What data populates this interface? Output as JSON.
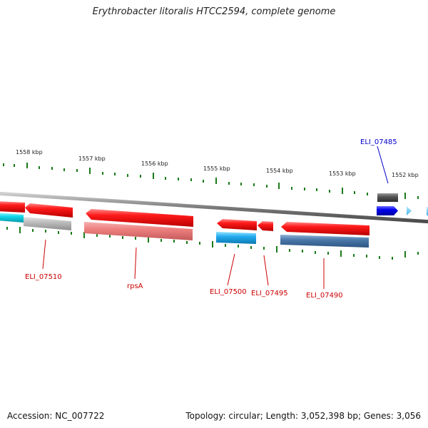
{
  "title": "Erythrobacter litoralis HTCC2594, complete genome",
  "footer": {
    "accession": "Accession: NC_007722",
    "topology": "Topology: circular; Length: 3,052,398 bp; Genes: 3,056"
  },
  "scale_labels": [
    "1558 kbp",
    "1557 kbp",
    "1556 kbp",
    "1555 kbp",
    "1554 kbp",
    "1553 kbp",
    "1552 kbp"
  ],
  "gene_labels": [
    "ELI_07485",
    "ELI_07510",
    "rpsA",
    "ELI_07500",
    "ELI_07495",
    "ELI_07490"
  ],
  "colors": {
    "gene_red": "#ff0000",
    "label_red": "#cc0000",
    "label_blue": "#0000cc",
    "tick_green": "#1a7a1a",
    "backbone": "#888888",
    "cyan": "#22aaee",
    "steel_blue": "#4a78aa",
    "pink": "#f08080",
    "gray": "#bbbbbb",
    "dark_gray": "#555555",
    "blue": "#0000ee"
  }
}
